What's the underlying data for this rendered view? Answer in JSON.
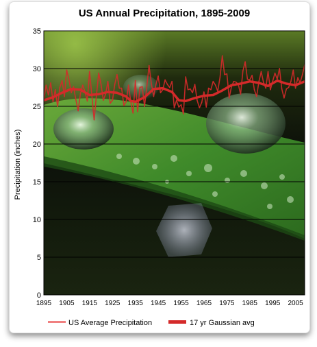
{
  "colors": {
    "raw_series": "#f08080",
    "avg_series": "#d42a2a",
    "gridline": "#000000",
    "frame": "#000000"
  },
  "chart_data": {
    "type": "line",
    "title": "US Annual Precipitation, 1895-2009",
    "xlabel": "",
    "ylabel": "Precipitation (inches)",
    "xlim": [
      1895,
      2009
    ],
    "ylim": [
      0,
      35
    ],
    "x_ticks": [
      "1895",
      "1905",
      "1915",
      "1925",
      "1935",
      "1945",
      "1955",
      "1965",
      "1975",
      "1985",
      "1995",
      "2005"
    ],
    "y_ticks": [
      "0",
      "5",
      "10",
      "15",
      "20",
      "25",
      "30",
      "35"
    ],
    "grid": "horizontal",
    "legend_position": "bottom",
    "background_image": "photo-water-droplets-on-green-leaf",
    "series": [
      {
        "name": "US Average Precipitation",
        "style": "thin-line",
        "x": [
          1895,
          1896,
          1897,
          1898,
          1899,
          1900,
          1901,
          1902,
          1903,
          1904,
          1905,
          1906,
          1907,
          1908,
          1909,
          1910,
          1911,
          1912,
          1913,
          1914,
          1915,
          1916,
          1917,
          1918,
          1919,
          1920,
          1921,
          1922,
          1923,
          1924,
          1925,
          1926,
          1927,
          1928,
          1929,
          1930,
          1931,
          1932,
          1933,
          1934,
          1935,
          1936,
          1937,
          1938,
          1939,
          1940,
          1941,
          1942,
          1943,
          1944,
          1945,
          1946,
          1947,
          1948,
          1949,
          1950,
          1951,
          1952,
          1953,
          1954,
          1955,
          1956,
          1957,
          1958,
          1959,
          1960,
          1961,
          1962,
          1963,
          1964,
          1965,
          1966,
          1967,
          1968,
          1969,
          1970,
          1971,
          1972,
          1973,
          1974,
          1975,
          1976,
          1977,
          1978,
          1979,
          1980,
          1981,
          1982,
          1983,
          1984,
          1985,
          1986,
          1987,
          1988,
          1989,
          1990,
          1991,
          1992,
          1993,
          1994,
          1995,
          1996,
          1997,
          1998,
          1999,
          2000,
          2001,
          2002,
          2003,
          2004,
          2005,
          2006,
          2007,
          2008,
          2009
        ],
        "values": [
          25.9,
          27.8,
          26.5,
          28.1,
          25.6,
          27.2,
          25.0,
          27.5,
          28.4,
          26.3,
          29.8,
          28.5,
          26.8,
          27.6,
          25.9,
          24.4,
          26.7,
          27.8,
          26.9,
          25.7,
          29.6,
          26.4,
          23.2,
          26.5,
          29.4,
          27.9,
          25.8,
          26.6,
          28.3,
          25.4,
          25.8,
          27.9,
          29.2,
          27.4,
          27.4,
          25.1,
          25.6,
          27.8,
          25.6,
          24.1,
          28.4,
          24.3,
          27.5,
          27.6,
          25.0,
          27.6,
          30.4,
          28.0,
          26.3,
          27.9,
          29.0,
          26.8,
          27.2,
          28.5,
          27.9,
          27.5,
          28.3,
          24.8,
          25.8,
          24.9,
          25.2,
          24.0,
          28.9,
          27.2,
          27.3,
          26.8,
          27.9,
          25.8,
          24.8,
          25.5,
          26.9,
          24.9,
          27.4,
          27.2,
          28.3,
          27.8,
          27.0,
          28.8,
          31.7,
          29.2,
          29.3,
          26.1,
          27.6,
          28.3,
          28.2,
          27.9,
          26.6,
          29.7,
          30.9,
          28.6,
          28.5,
          29.1,
          27.2,
          26.3,
          28.3,
          29.6,
          28.2,
          27.4,
          29.6,
          27.2,
          28.3,
          29.4,
          28.6,
          30.0,
          27.3,
          26.1,
          27.3,
          27.5,
          28.3,
          29.8,
          27.4,
          28.8,
          28.1,
          29.2,
          30.5
        ]
      },
      {
        "name": "17 yr Gaussian avg",
        "style": "thick-line",
        "x": [
          1895,
          1899,
          1903,
          1907,
          1911,
          1915,
          1919,
          1923,
          1927,
          1931,
          1933,
          1935,
          1939,
          1943,
          1947,
          1951,
          1954,
          1957,
          1961,
          1965,
          1969,
          1973,
          1977,
          1981,
          1985,
          1989,
          1993,
          1997,
          2001,
          2005,
          2009
        ],
        "values": [
          25.8,
          26.2,
          26.8,
          27.3,
          27.2,
          26.5,
          26.6,
          26.9,
          26.8,
          26.3,
          25.7,
          25.6,
          26.2,
          27.3,
          27.4,
          26.9,
          25.8,
          25.7,
          26.1,
          26.4,
          26.5,
          27.1,
          27.8,
          28.0,
          28.3,
          28.1,
          27.7,
          28.4,
          28.0,
          27.8,
          28.3
        ]
      }
    ]
  }
}
